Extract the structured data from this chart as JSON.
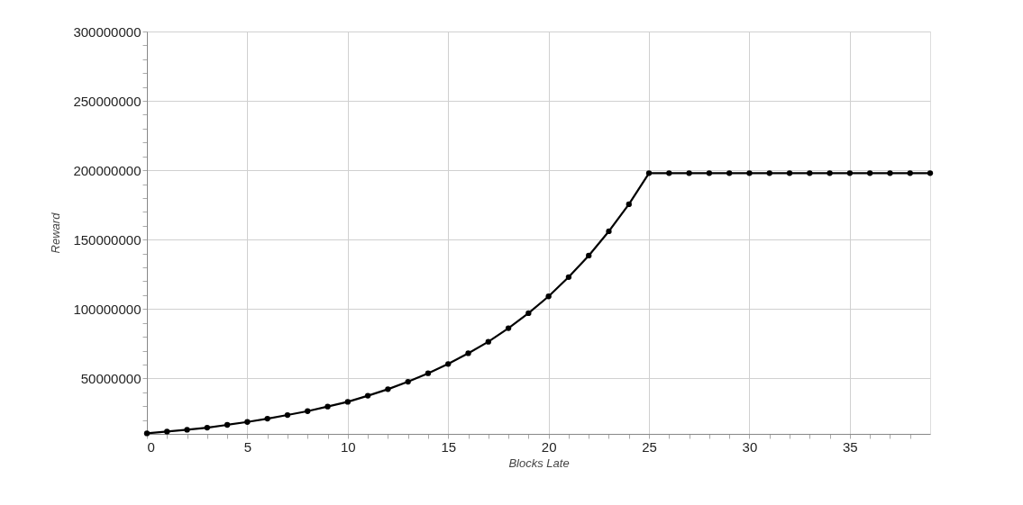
{
  "chart_data": {
    "type": "line",
    "xlabel": "Blocks Late",
    "ylabel": "Reward",
    "x": [
      0,
      1,
      2,
      3,
      4,
      5,
      6,
      7,
      8,
      9,
      10,
      11,
      12,
      13,
      14,
      15,
      16,
      17,
      18,
      19,
      20,
      21,
      22,
      23,
      24,
      25,
      26,
      27,
      28,
      29,
      30,
      31,
      32,
      33,
      34,
      35,
      36,
      37,
      38,
      39
    ],
    "series": [
      {
        "color": "#000000",
        "values": [
          10400000,
          11700000,
          13000000,
          14500000,
          16500000,
          18600000,
          21000000,
          23600000,
          26400000,
          29700000,
          33100000,
          37500000,
          42200000,
          47600000,
          53700000,
          60400000,
          68100000,
          76400000,
          86200000,
          97000000,
          109100000,
          123000000,
          138500000,
          156000000,
          175500000,
          197900000,
          197900000,
          197900000,
          197900000,
          197900000,
          197900000,
          197900000,
          197900000,
          197900000,
          197900000,
          197900000,
          197900000,
          197900000,
          197900000,
          197900000
        ]
      }
    ],
    "xlim": [
      0,
      39
    ],
    "xticks": [
      0,
      {
        "value": 1,
        "label": null
      },
      {
        "value": 2,
        "label": null
      },
      {
        "value": 3,
        "label": null
      },
      {
        "value": 4,
        "label": null
      },
      5,
      {
        "value": 6,
        "label": null
      },
      {
        "value": 7,
        "label": null
      },
      {
        "value": 8,
        "label": null
      },
      {
        "value": 9,
        "label": null
      },
      10,
      {
        "value": 11,
        "label": null
      },
      {
        "value": 12,
        "label": null
      },
      {
        "value": 13,
        "label": null
      },
      {
        "value": 14,
        "label": null
      },
      15,
      {
        "value": 16,
        "label": null
      },
      {
        "value": 17,
        "label": null
      },
      {
        "value": 18,
        "label": null
      },
      {
        "value": 19,
        "label": null
      },
      20,
      {
        "value": 21,
        "label": null
      },
      {
        "value": 22,
        "label": null
      },
      {
        "value": 23,
        "label": null
      },
      {
        "value": 24,
        "label": null
      },
      25,
      {
        "value": 26,
        "label": null
      },
      {
        "value": 27,
        "label": null
      },
      {
        "value": 28,
        "label": null
      },
      {
        "value": 29,
        "label": null
      },
      30,
      {
        "value": 31,
        "label": null
      },
      {
        "value": 32,
        "label": null
      },
      {
        "value": 33,
        "label": null
      },
      {
        "value": 34,
        "label": null
      },
      35,
      {
        "value": 36,
        "label": null
      },
      {
        "value": 37,
        "label": null
      },
      {
        "value": 38,
        "label": null
      }
    ],
    "ylim": [
      10000000,
      300000000
    ],
    "yticks": [
      {
        "value": 20000000,
        "label": null
      },
      {
        "value": 30000000,
        "label": null
      },
      {
        "value": 40000000,
        "label": null
      },
      50000000,
      {
        "value": 60000000,
        "label": null
      },
      {
        "value": 70000000,
        "label": null
      },
      {
        "value": 80000000,
        "label": null
      },
      {
        "value": 90000000,
        "label": null
      },
      100000000,
      {
        "value": 110000000,
        "label": null
      },
      {
        "value": 120000000,
        "label": null
      },
      {
        "value": 130000000,
        "label": null
      },
      {
        "value": 140000000,
        "label": null
      },
      150000000,
      {
        "value": 160000000,
        "label": null
      },
      {
        "value": 170000000,
        "label": null
      },
      {
        "value": 180000000,
        "label": null
      },
      {
        "value": 190000000,
        "label": null
      },
      200000000,
      {
        "value": 210000000,
        "label": null
      },
      {
        "value": 220000000,
        "label": null
      },
      {
        "value": 230000000,
        "label": null
      },
      {
        "value": 240000000,
        "label": null
      },
      250000000,
      {
        "value": 260000000,
        "label": null
      },
      {
        "value": 270000000,
        "label": null
      },
      {
        "value": 280000000,
        "label": null
      },
      {
        "value": 290000000,
        "label": null
      },
      300000000
    ],
    "grid": true,
    "marker": "circle",
    "line_style": "solid",
    "legend": false
  }
}
